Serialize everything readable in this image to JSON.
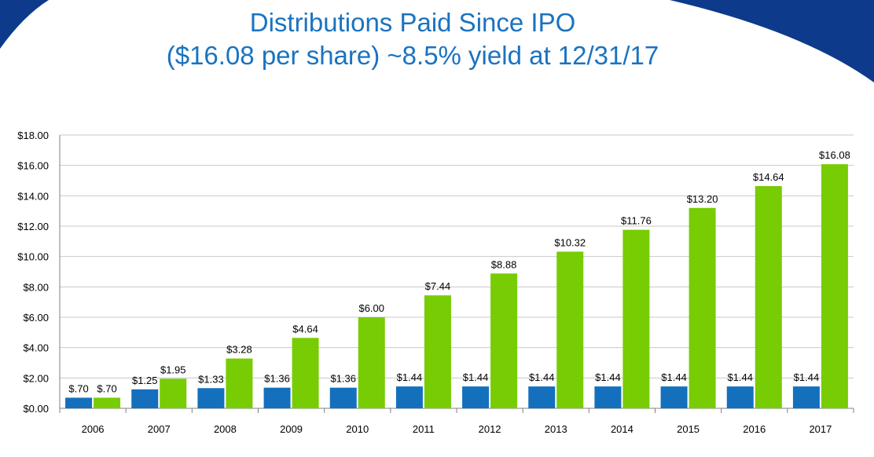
{
  "slide": {
    "title_line1": "Distributions Paid Since IPO",
    "title_line2": "($16.08 per share) ~8.5% yield at 12/31/17",
    "accent_color": "#1a73c0",
    "corner_color": "#0d3a8a"
  },
  "chart_data": {
    "type": "bar",
    "title": "",
    "xlabel": "",
    "ylabel": "",
    "categories": [
      "2006",
      "2007",
      "2008",
      "2009",
      "2010",
      "2011",
      "2012",
      "2013",
      "2014",
      "2015",
      "2016",
      "2017"
    ],
    "series": [
      {
        "color": "#1470bd",
        "values": [
          0.7,
          1.25,
          1.33,
          1.36,
          1.36,
          1.44,
          1.44,
          1.44,
          1.44,
          1.44,
          1.44,
          1.44
        ],
        "labels": [
          "$.70",
          "$1.25",
          "$1.33",
          "$1.36",
          "$1.36",
          "$1.44",
          "$1.44",
          "$1.44",
          "$1.44",
          "$1.44",
          "$1.44",
          "$1.44"
        ]
      },
      {
        "color": "#77cc04",
        "values": [
          0.7,
          1.95,
          3.28,
          4.64,
          6.0,
          7.44,
          8.88,
          10.32,
          11.76,
          13.2,
          14.64,
          16.08
        ],
        "labels": [
          "$.70",
          "$1.95",
          "$3.28",
          "$4.64",
          "$6.00",
          "$7.44",
          "$8.88",
          "$10.32",
          "$11.76",
          "$13.20",
          "$14.64",
          "$16.08"
        ]
      }
    ],
    "ylim": [
      0,
      18
    ],
    "yticks": [
      "$0.00",
      "$2.00",
      "$4.00",
      "$6.00",
      "$8.00",
      "$10.00",
      "$12.00",
      "$14.00",
      "$16.00",
      "$18.00"
    ],
    "grid": true,
    "legend": "none"
  }
}
